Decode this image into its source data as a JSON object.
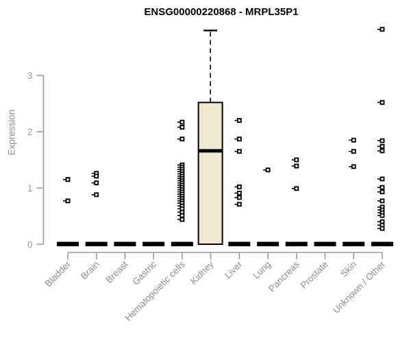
{
  "colors": {
    "background": "#ffffff",
    "title": "#000000",
    "axis": "#9a9a9a",
    "tick_label": "#9a9a9a",
    "category_label": "#8e8e8e",
    "box_fill": "#ede8cf",
    "box_border": "#000000",
    "point": "#000000"
  },
  "chart_data": {
    "type": "boxplot",
    "title": "ENSG00000220868 - MRPL35P1",
    "ylabel": "Expression",
    "xlabel": "",
    "yticks": [
      0,
      1,
      2,
      3
    ],
    "ylim": [
      0,
      3.95
    ],
    "grid": false,
    "legend": "none",
    "categories": [
      "Bladder",
      "Brain",
      "Breast",
      "Gastric",
      "Hematopoietic cells",
      "Kidney",
      "Liver",
      "Lung",
      "Pancreas",
      "Prostate",
      "Skin",
      "Unknown / Other"
    ],
    "series": [
      {
        "category": "Bladder",
        "box": {
          "q1": 0,
          "median": 0,
          "q3": 0
        },
        "points": [
          1.15,
          0.77
        ]
      },
      {
        "category": "Brain",
        "box": {
          "q1": 0,
          "median": 0,
          "q3": 0
        },
        "points": [
          1.26,
          1.21,
          1.09,
          0.88
        ]
      },
      {
        "category": "Breast",
        "box": {
          "q1": 0,
          "median": 0,
          "q3": 0
        },
        "points": []
      },
      {
        "category": "Gastric",
        "box": {
          "q1": 0,
          "median": 0,
          "q3": 0
        },
        "points": []
      },
      {
        "category": "Hematopoietic cells",
        "box": {
          "q1": 0,
          "median": 0,
          "q3": 0
        },
        "points": [
          2.17,
          2.08,
          1.87,
          1.41,
          1.37,
          1.33,
          1.29,
          1.25,
          1.21,
          1.17,
          1.13,
          1.09,
          1.05,
          1.01,
          0.97,
          0.93,
          0.89,
          0.85,
          0.81,
          0.77,
          0.73,
          0.68,
          0.63,
          0.57,
          0.51,
          0.44
        ]
      },
      {
        "category": "Kidney",
        "box": {
          "q1": 0,
          "median": 1.66,
          "q3": 2.52,
          "whisker_high": 3.8
        },
        "points": []
      },
      {
        "category": "Liver",
        "box": {
          "q1": 0,
          "median": 0,
          "q3": 0
        },
        "points": [
          2.2,
          1.87,
          1.65,
          1.02,
          0.91,
          0.83,
          0.71
        ]
      },
      {
        "category": "Lung",
        "box": {
          "q1": 0,
          "median": 0,
          "q3": 0
        },
        "points": [
          1.32
        ]
      },
      {
        "category": "Pancreas",
        "box": {
          "q1": 0,
          "median": 0,
          "q3": 0
        },
        "points": [
          1.5,
          1.39,
          0.99
        ]
      },
      {
        "category": "Prostate",
        "box": {
          "q1": 0,
          "median": 0,
          "q3": 0
        },
        "points": []
      },
      {
        "category": "Skin",
        "box": {
          "q1": 0,
          "median": 0,
          "q3": 0
        },
        "points": [
          1.85,
          1.65,
          1.38
        ]
      },
      {
        "category": "Unknown / Other",
        "box": {
          "q1": 0,
          "median": 0,
          "q3": 0
        },
        "points": [
          3.82,
          2.52,
          1.84,
          1.74,
          1.66,
          1.16,
          1.01,
          0.93,
          0.77,
          0.66,
          0.61,
          0.56,
          0.51,
          0.4,
          0.34,
          0.28
        ]
      }
    ]
  }
}
